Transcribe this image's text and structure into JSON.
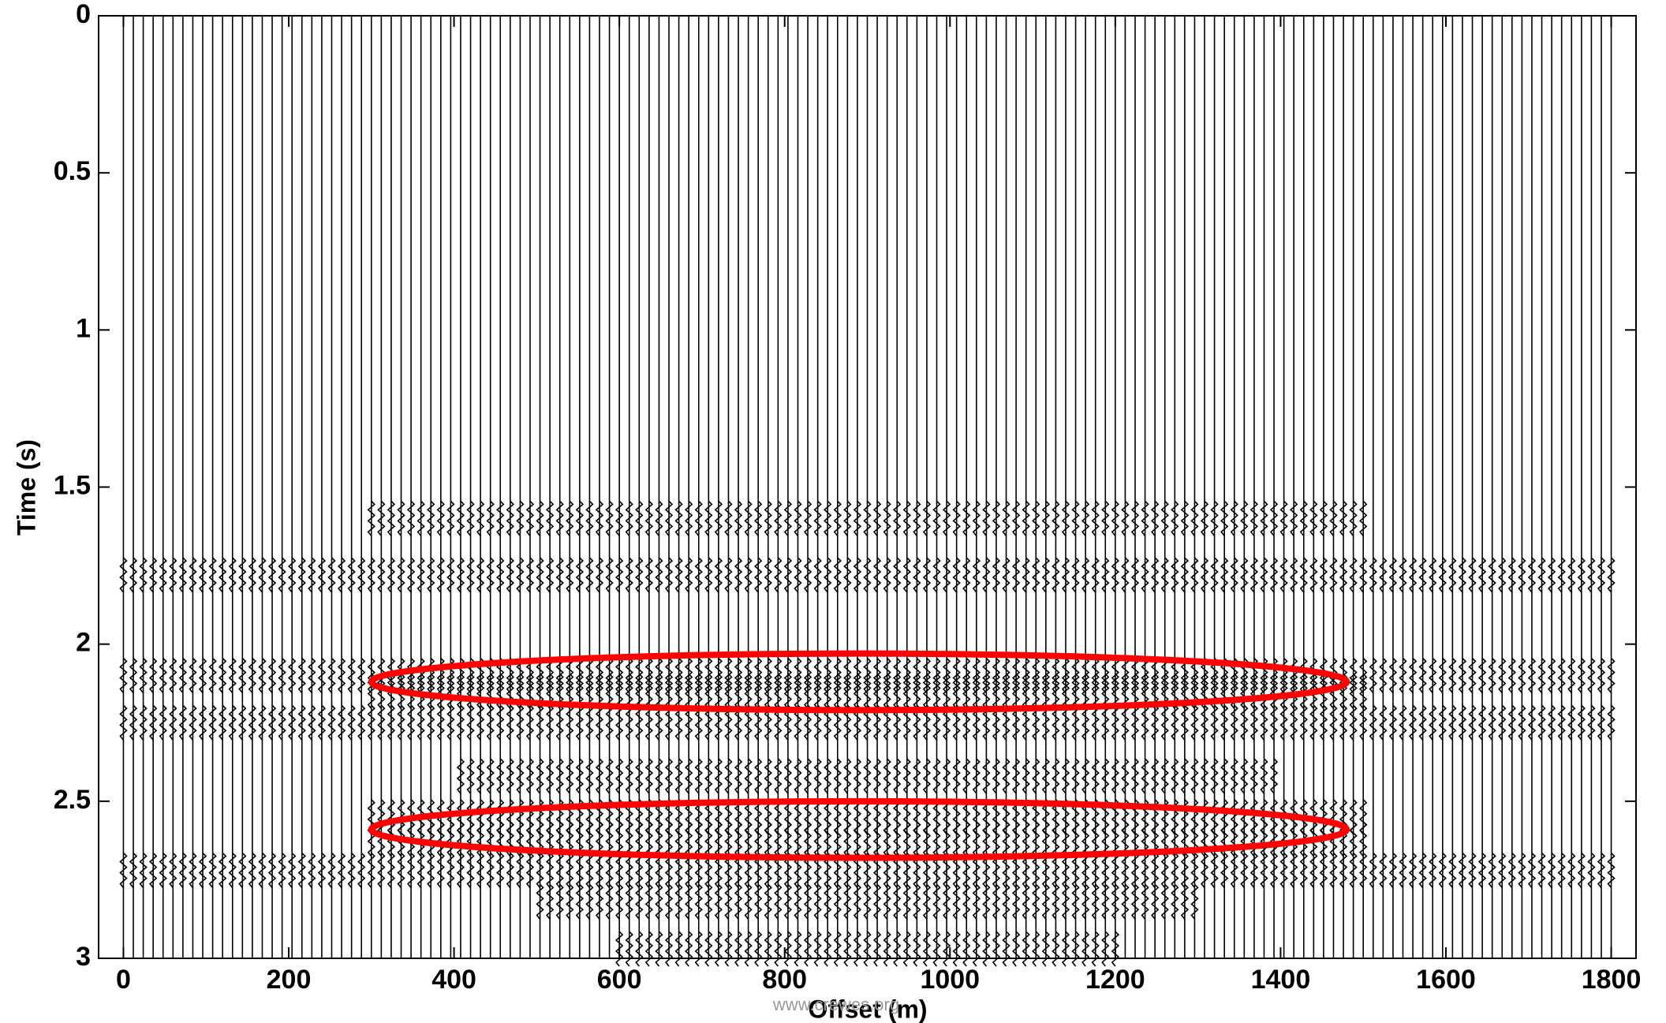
{
  "chart_data": {
    "type": "wiggle",
    "x_label": "Offset (m)",
    "y_label": "Time (s)",
    "watermark": "www.crewes.org",
    "xlim": [
      -30,
      1830
    ],
    "ylim": [
      0,
      3
    ],
    "y_reversed": true,
    "xticks": [
      0,
      200,
      400,
      600,
      800,
      1000,
      1200,
      1400,
      1600,
      1800
    ],
    "yticks": [
      0,
      0.5,
      1,
      1.5,
      2,
      2.5,
      3
    ],
    "trace_color": "#000000",
    "traces": [
      0,
      12,
      24,
      36,
      48,
      60,
      72,
      84,
      96,
      108,
      120,
      132,
      144,
      156,
      168,
      180,
      192,
      204,
      216,
      228,
      240,
      252,
      264,
      276,
      288,
      300,
      312,
      324,
      336,
      348,
      360,
      372,
      384,
      396,
      408,
      420,
      432,
      444,
      456,
      468,
      480,
      492,
      504,
      516,
      528,
      540,
      552,
      564,
      576,
      588,
      600,
      612,
      624,
      636,
      648,
      660,
      672,
      684,
      696,
      708,
      720,
      732,
      744,
      756,
      768,
      780,
      792,
      804,
      816,
      828,
      840,
      852,
      864,
      876,
      888,
      900,
      912,
      924,
      936,
      948,
      960,
      972,
      984,
      996,
      1008,
      1020,
      1032,
      1044,
      1056,
      1068,
      1080,
      1092,
      1104,
      1116,
      1128,
      1140,
      1152,
      1164,
      1176,
      1188,
      1200,
      1212,
      1224,
      1236,
      1248,
      1260,
      1272,
      1284,
      1296,
      1308,
      1320,
      1332,
      1344,
      1356,
      1368,
      1380,
      1392,
      1404,
      1416,
      1428,
      1440,
      1452,
      1464,
      1476,
      1488,
      1500,
      1512,
      1524,
      1536,
      1548,
      1560,
      1572,
      1584,
      1596,
      1608,
      1620,
      1632,
      1644,
      1656,
      1668,
      1680,
      1692,
      1704,
      1716,
      1728,
      1740,
      1752,
      1764,
      1776,
      1788,
      1800
    ],
    "events": [
      {
        "time": 1.6,
        "x_range": [
          300,
          1500
        ]
      },
      {
        "time": 1.78,
        "x_range": [
          0,
          1800
        ]
      },
      {
        "time": 2.1,
        "x_range": [
          0,
          1800
        ]
      },
      {
        "time": 2.15,
        "x_range": [
          300,
          1500
        ]
      },
      {
        "time": 2.25,
        "x_range": [
          0,
          1800
        ]
      },
      {
        "time": 2.42,
        "x_range": [
          400,
          1400
        ]
      },
      {
        "time": 2.55,
        "x_range": [
          300,
          1500
        ]
      },
      {
        "time": 2.62,
        "x_range": [
          300,
          1500
        ]
      },
      {
        "time": 2.72,
        "x_range": [
          0,
          1800
        ]
      },
      {
        "time": 2.82,
        "x_range": [
          500,
          1300
        ]
      },
      {
        "time": 2.97,
        "x_range": [
          600,
          1200
        ]
      }
    ],
    "highlight_color": "#ff0000",
    "highlights": [
      {
        "x_range": [
          300,
          1480
        ],
        "y_range": [
          2.03,
          2.21
        ]
      },
      {
        "x_range": [
          300,
          1480
        ],
        "y_range": [
          2.5,
          2.68
        ]
      }
    ]
  }
}
